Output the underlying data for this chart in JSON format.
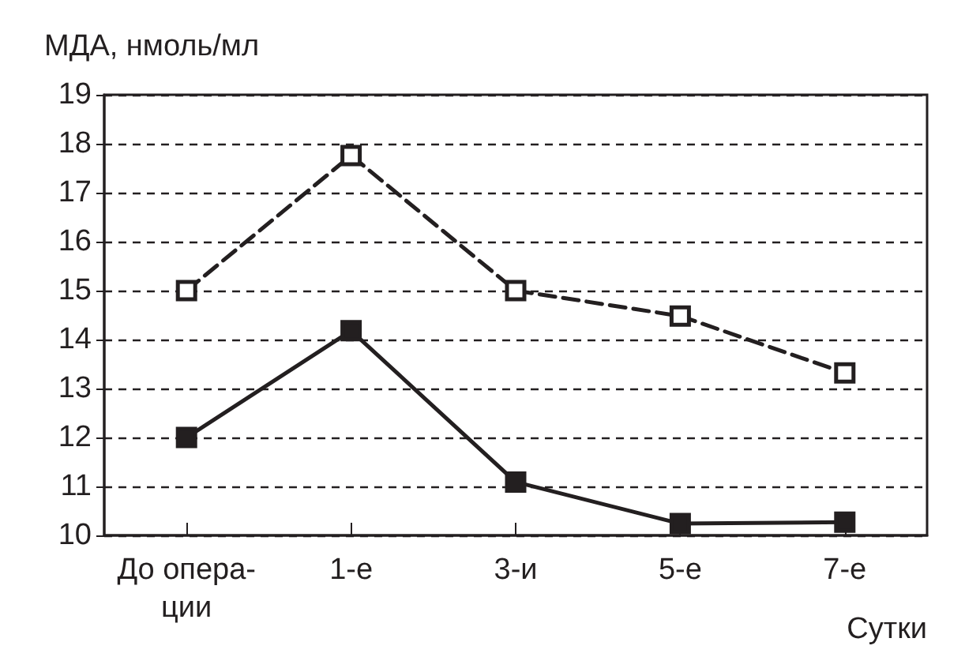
{
  "chart_data": {
    "type": "line",
    "ylabel": "МДА, нмоль/мл",
    "xlabel": "Сутки",
    "categories": [
      "До опера-\nции",
      "1-е",
      "3-и",
      "5-е",
      "7-е"
    ],
    "series": [
      {
        "color": "#231f20",
        "values": [
          15,
          17.76,
          15,
          14.48,
          13.32
        ],
        "line_style": "dashed",
        "marker": "square"
      },
      {
        "color": "#231f20",
        "values": [
          12,
          14.18,
          11.09,
          10.24,
          10.27
        ],
        "line_style": "solid",
        "marker": "square"
      }
    ],
    "ylim": [
      10,
      19
    ],
    "yticks": [
      10,
      11,
      12,
      13,
      14,
      15,
      16,
      17,
      18,
      19
    ],
    "grid": "y"
  }
}
